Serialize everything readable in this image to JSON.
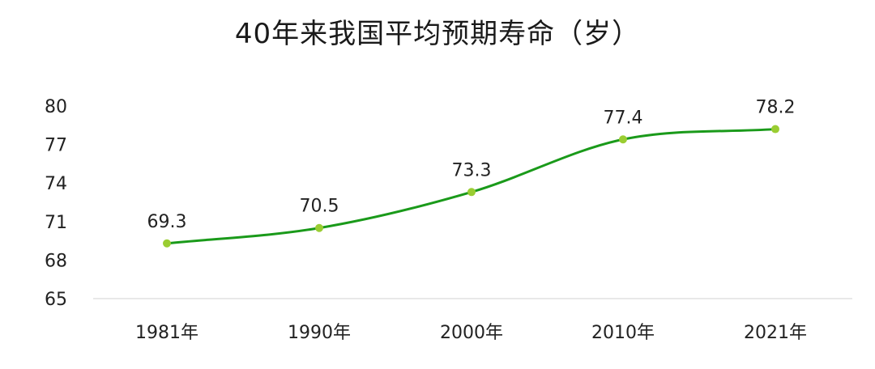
{
  "chart_data": {
    "type": "line",
    "title": "40年来我国平均预期寿命（岁）",
    "xlabel": "",
    "ylabel": "",
    "categories": [
      "1981年",
      "1990年",
      "2000年",
      "2010年",
      "2021年"
    ],
    "series": [
      {
        "values": [
          69.3,
          70.5,
          73.3,
          77.4,
          78.2
        ]
      }
    ],
    "data_labels": [
      "69.3",
      "70.5",
      "73.3",
      "77.4",
      "78.2"
    ],
    "yticks": [
      "80",
      "77",
      "74",
      "71",
      "68",
      "65"
    ],
    "ylim": [
      65,
      80
    ],
    "grid": false,
    "legend": "none",
    "colors": {
      "line": "#1a9a1a",
      "marker": "#9acd32",
      "baseline": "#d9d9d9"
    }
  }
}
